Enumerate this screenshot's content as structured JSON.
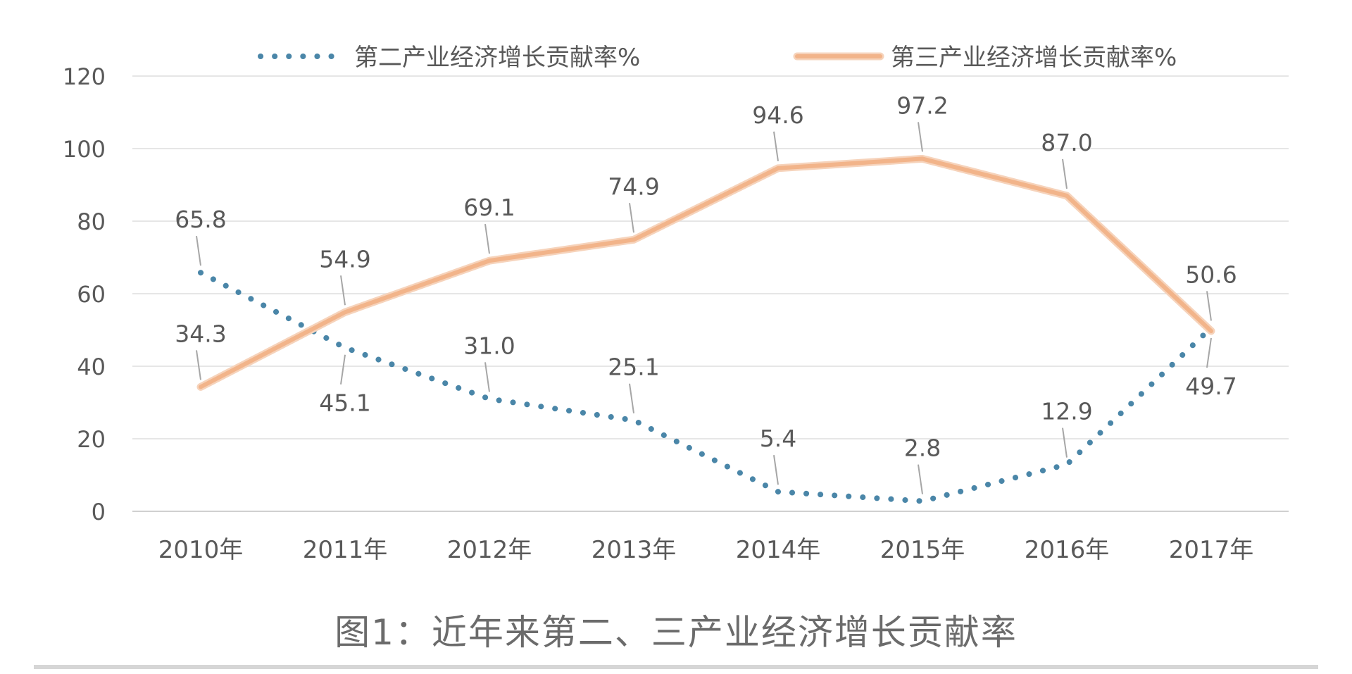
{
  "caption": "图1：近年来第二、三产业经济增长贡献率",
  "chart_data": {
    "type": "line",
    "categories": [
      "2010年",
      "2011年",
      "2012年",
      "2013年",
      "2014年",
      "2015年",
      "2016年",
      "2017年"
    ],
    "series": [
      {
        "name": "第二产业经济增长贡献率%",
        "values": [
          65.8,
          45.1,
          31.0,
          25.1,
          5.4,
          2.8,
          12.9,
          50.6
        ],
        "color": "#4a86a8",
        "style": "dotted"
      },
      {
        "name": "第三产业经济增长贡献率%",
        "values": [
          34.3,
          54.9,
          69.1,
          74.9,
          94.6,
          97.2,
          87.0,
          49.7
        ],
        "color": "#f2b48a",
        "style": "solid"
      }
    ],
    "yticks": [
      0,
      20,
      40,
      60,
      80,
      100,
      120
    ],
    "ylim": [
      0,
      120
    ],
    "grid": true,
    "legend": "top-center"
  }
}
